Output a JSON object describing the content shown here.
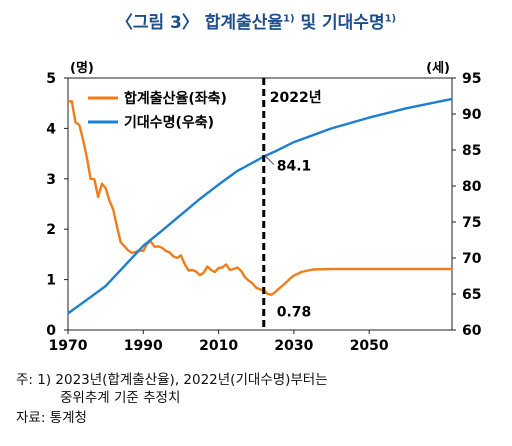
{
  "title": {
    "main": "〈그림 3〉 합계출산율",
    "sup1": "1)",
    "mid": " 및 기대수명",
    "sup2": "1)"
  },
  "chart_data": {
    "type": "line",
    "left_unit": "(명)",
    "right_unit": "(세)",
    "x_ticks": [
      1970,
      1990,
      2010,
      2030,
      2050
    ],
    "y_left_ticks": [
      0,
      1,
      2,
      3,
      4,
      5
    ],
    "y_right_ticks": [
      60,
      65,
      70,
      75,
      80,
      85,
      90,
      95
    ],
    "xlim": [
      1970,
      2072
    ],
    "ylim_left": [
      0,
      5
    ],
    "ylim_right": [
      60,
      95
    ],
    "legend_position": "top-left",
    "vline": {
      "x": 2022,
      "label": "2022년"
    },
    "annotations": [
      {
        "text": "84.1",
        "x": 2022,
        "y": 84.1,
        "axis": "right"
      },
      {
        "text": "0.78",
        "x": 2022,
        "y": 0.78,
        "axis": "left"
      }
    ],
    "series": [
      {
        "name": "합계출산율(좌축)",
        "axis": "left",
        "color": "#f07d1a",
        "x": [
          1970,
          1971,
          1972,
          1973,
          1974,
          1975,
          1976,
          1977,
          1978,
          1979,
          1980,
          1981,
          1982,
          1983,
          1984,
          1985,
          1986,
          1987,
          1988,
          1989,
          1990,
          1991,
          1992,
          1993,
          1994,
          1995,
          1996,
          1997,
          1998,
          1999,
          2000,
          2001,
          2002,
          2003,
          2004,
          2005,
          2006,
          2007,
          2008,
          2009,
          2010,
          2011,
          2012,
          2013,
          2014,
          2015,
          2016,
          2017,
          2018,
          2019,
          2020,
          2021,
          2022,
          2023,
          2024,
          2025,
          2026,
          2027,
          2028,
          2029,
          2030,
          2032,
          2035,
          2040,
          2050,
          2060,
          2072
        ],
        "y": [
          4.53,
          4.54,
          4.12,
          4.07,
          3.77,
          3.43,
          3.0,
          2.99,
          2.64,
          2.9,
          2.82,
          2.57,
          2.39,
          2.06,
          1.74,
          1.66,
          1.58,
          1.53,
          1.55,
          1.58,
          1.57,
          1.71,
          1.76,
          1.65,
          1.66,
          1.63,
          1.57,
          1.54,
          1.46,
          1.43,
          1.48,
          1.31,
          1.18,
          1.19,
          1.16,
          1.09,
          1.13,
          1.26,
          1.19,
          1.15,
          1.23,
          1.24,
          1.3,
          1.19,
          1.21,
          1.24,
          1.17,
          1.05,
          0.98,
          0.92,
          0.84,
          0.81,
          0.78,
          0.72,
          0.7,
          0.75,
          0.82,
          0.88,
          0.95,
          1.02,
          1.08,
          1.15,
          1.2,
          1.21,
          1.21,
          1.21,
          1.21
        ]
      },
      {
        "name": "기대수명(우축)",
        "axis": "right",
        "color": "#1e7fd0",
        "x": [
          1970,
          1975,
          1980,
          1985,
          1990,
          1995,
          2000,
          2005,
          2010,
          2015,
          2020,
          2022,
          2025,
          2030,
          2040,
          2050,
          2060,
          2072
        ],
        "y": [
          62.3,
          64.2,
          66.1,
          68.9,
          71.7,
          73.8,
          76.0,
          78.2,
          80.2,
          82.1,
          83.5,
          84.1,
          84.8,
          86.1,
          88.0,
          89.5,
          90.8,
          92.1
        ]
      }
    ]
  },
  "footnote": {
    "line1": "주: 1) 2023년(합계출산율), 2022년(기대수명)부터는",
    "line2": "중위추계 기준 추정치"
  },
  "source": "자료: 통계청"
}
